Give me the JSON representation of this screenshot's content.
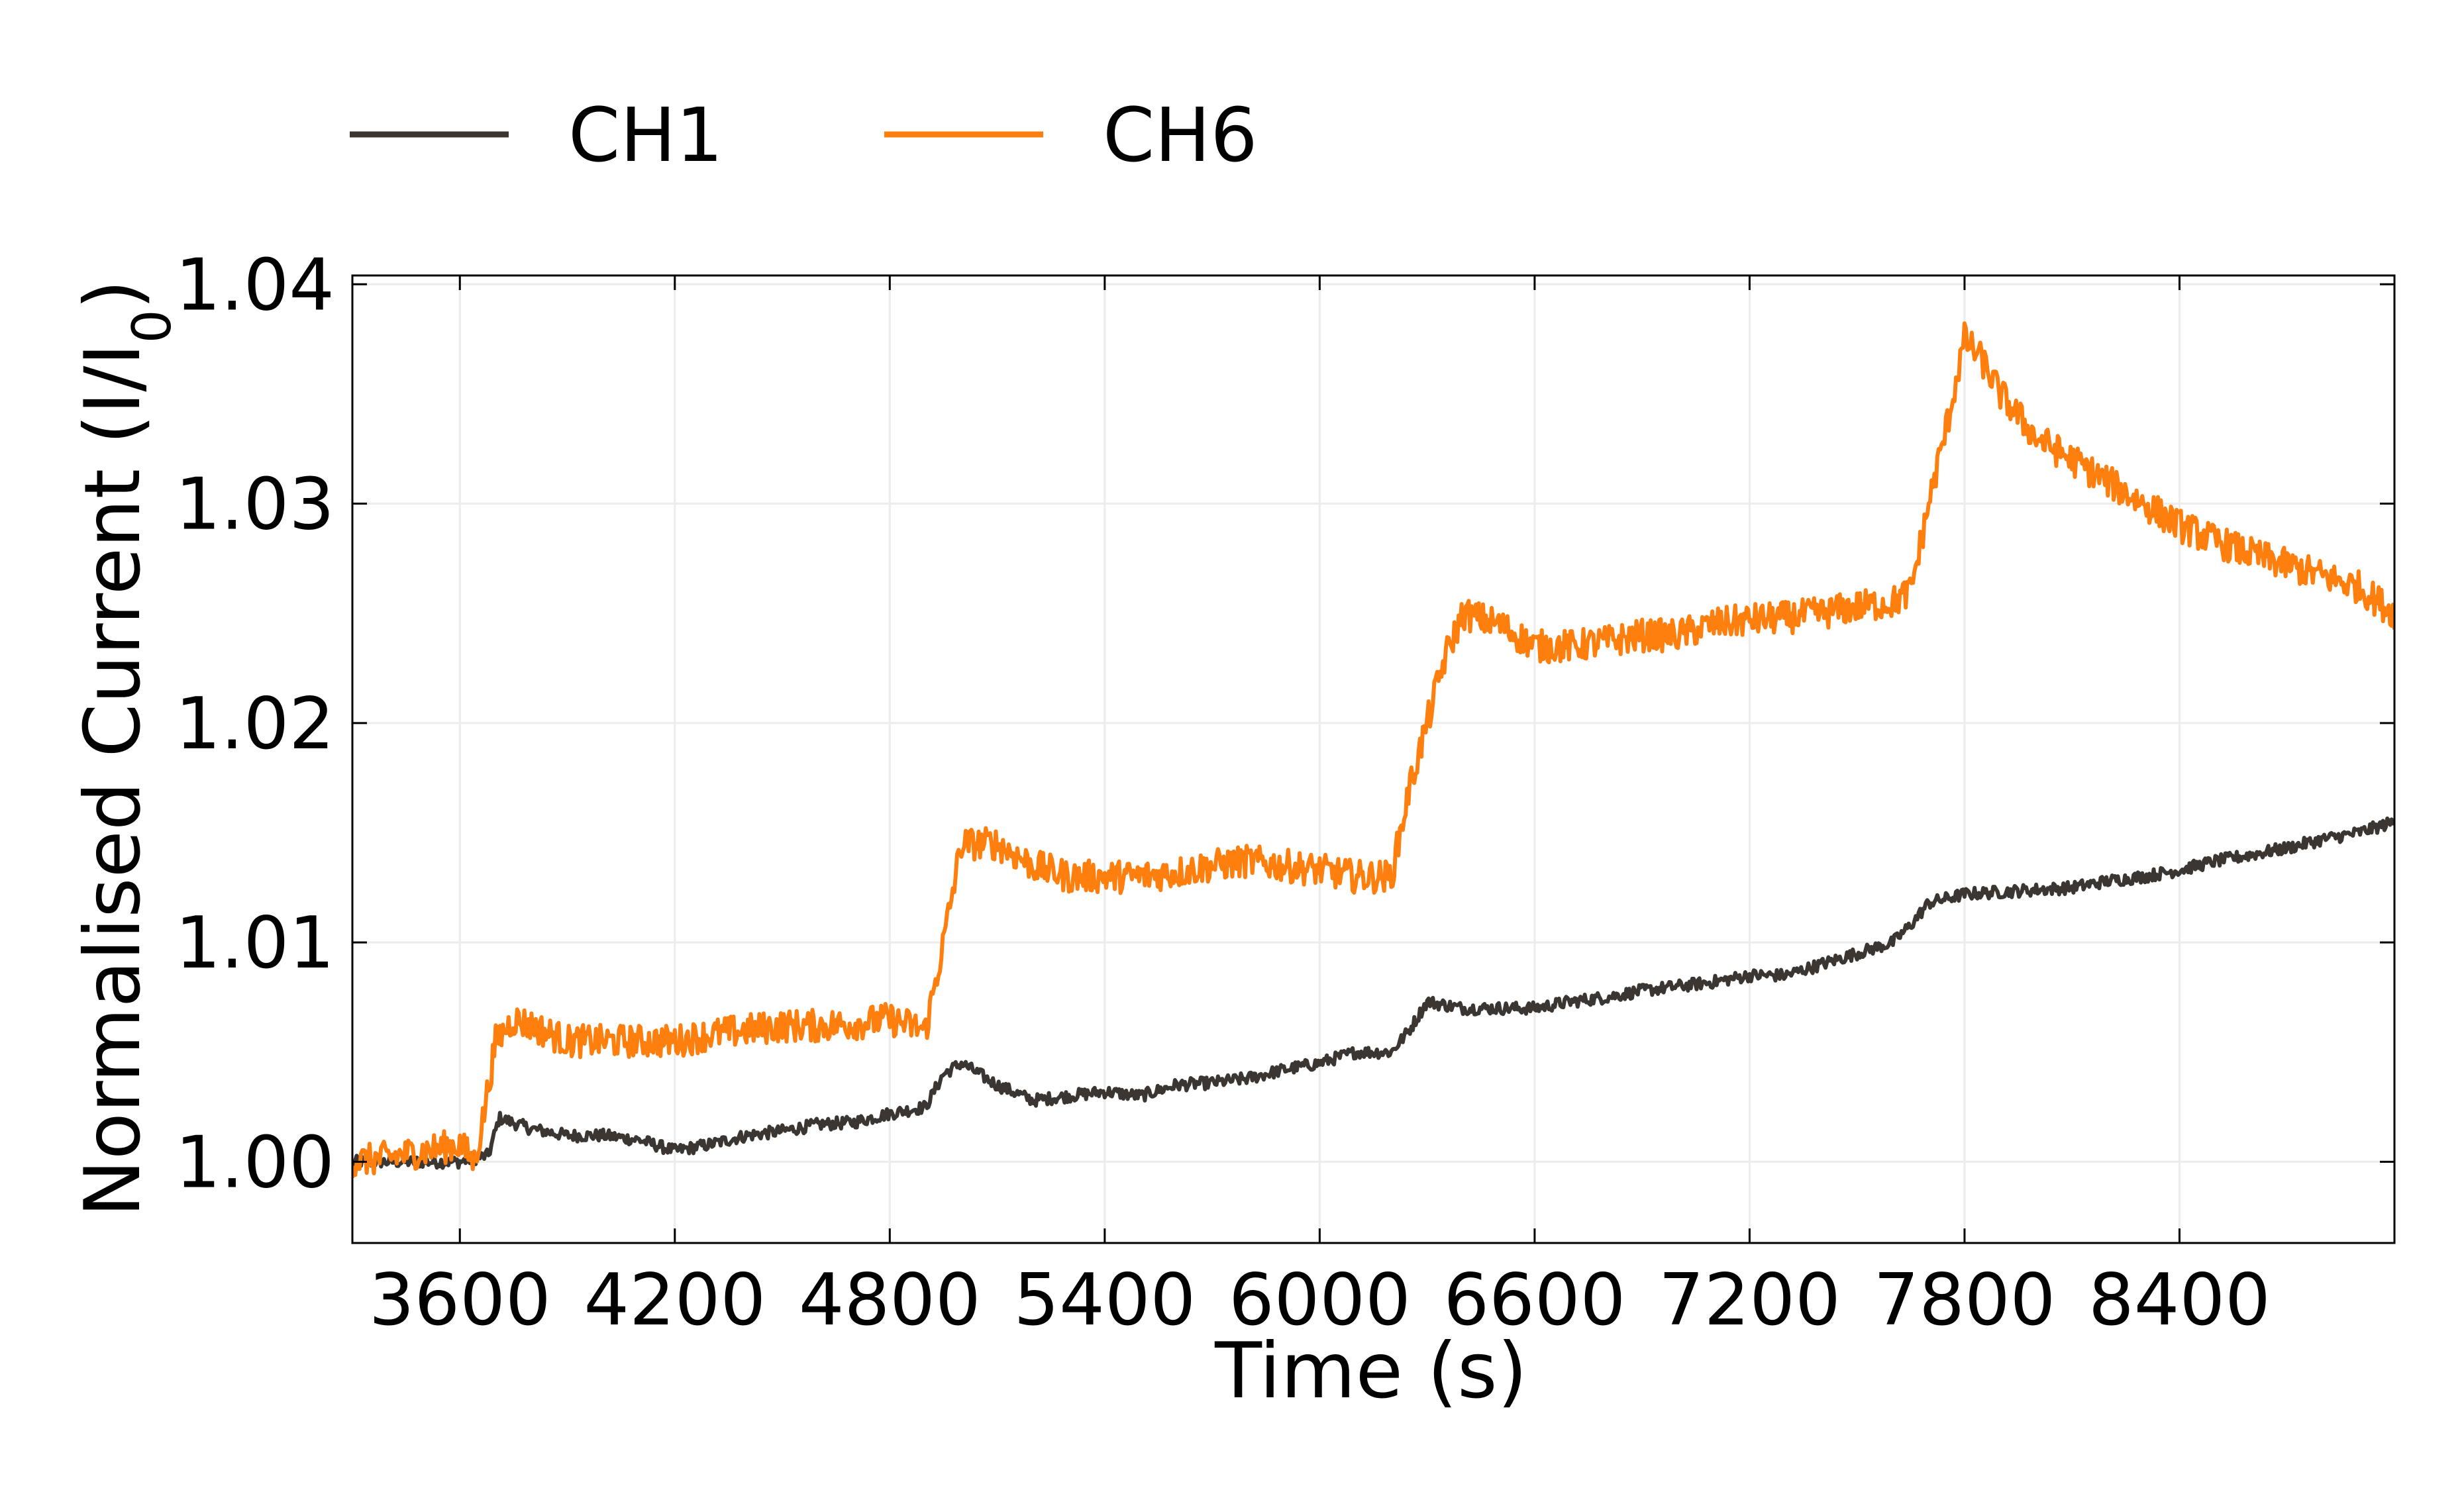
{
  "chart_data": {
    "type": "line",
    "title": "",
    "xlabel": "Time (s)",
    "ylabel_main": "Normalised Current (I/I",
    "ylabel_sub": "0",
    "ylabel_close": ")",
    "xlim": [
      3300,
      9000
    ],
    "ylim": [
      0.9963,
      1.0404
    ],
    "xticks": [
      3600,
      4200,
      4800,
      5400,
      6000,
      6600,
      7200,
      7800,
      8400
    ],
    "xtick_labels": [
      "3600",
      "4200",
      "4800",
      "5400",
      "6000",
      "6600",
      "7200",
      "7800",
      "8400"
    ],
    "yticks": [
      1.0,
      1.01,
      1.02,
      1.03,
      1.04
    ],
    "ytick_labels": [
      "1.00",
      "1.01",
      "1.02",
      "1.03",
      "1.04"
    ],
    "grid": true,
    "legend_position": "top",
    "series": [
      {
        "name": "CH1",
        "color": "#3b3632",
        "points": [
          [
            3300,
            1.0
          ],
          [
            3400,
            1.0
          ],
          [
            3500,
            1.0
          ],
          [
            3600,
            1.0
          ],
          [
            3680,
            1.0003
          ],
          [
            3710,
            1.002
          ],
          [
            3800,
            1.0015
          ],
          [
            3900,
            1.0012
          ],
          [
            4000,
            1.0012
          ],
          [
            4100,
            1.001
          ],
          [
            4200,
            1.0005
          ],
          [
            4300,
            1.0008
          ],
          [
            4400,
            1.0012
          ],
          [
            4500,
            1.0014
          ],
          [
            4600,
            1.0017
          ],
          [
            4700,
            1.0018
          ],
          [
            4800,
            1.0022
          ],
          [
            4900,
            1.0025
          ],
          [
            4950,
            1.004
          ],
          [
            5000,
            1.0045
          ],
          [
            5100,
            1.0035
          ],
          [
            5200,
            1.0028
          ],
          [
            5300,
            1.003
          ],
          [
            5400,
            1.0032
          ],
          [
            5500,
            1.003
          ],
          [
            5600,
            1.0035
          ],
          [
            5700,
            1.0036
          ],
          [
            5800,
            1.0038
          ],
          [
            5900,
            1.0042
          ],
          [
            6000,
            1.0045
          ],
          [
            6100,
            1.005
          ],
          [
            6200,
            1.005
          ],
          [
            6250,
            1.006
          ],
          [
            6300,
            1.0073
          ],
          [
            6400,
            1.007
          ],
          [
            6500,
            1.007
          ],
          [
            6600,
            1.007
          ],
          [
            6700,
            1.0073
          ],
          [
            6800,
            1.0075
          ],
          [
            6900,
            1.0078
          ],
          [
            7000,
            1.008
          ],
          [
            7100,
            1.0082
          ],
          [
            7200,
            1.0085
          ],
          [
            7300,
            1.0085
          ],
          [
            7400,
            1.009
          ],
          [
            7500,
            1.0095
          ],
          [
            7600,
            1.01
          ],
          [
            7650,
            1.0108
          ],
          [
            7700,
            1.0118
          ],
          [
            7800,
            1.0122
          ],
          [
            7900,
            1.0123
          ],
          [
            8000,
            1.0124
          ],
          [
            8100,
            1.0125
          ],
          [
            8200,
            1.0128
          ],
          [
            8300,
            1.013
          ],
          [
            8400,
            1.0133
          ],
          [
            8500,
            1.0137
          ],
          [
            8600,
            1.014
          ],
          [
            8700,
            1.0143
          ],
          [
            8800,
            1.0147
          ],
          [
            8900,
            1.015
          ],
          [
            9000,
            1.0155
          ]
        ]
      },
      {
        "name": "CH6",
        "color": "#ff7f0e",
        "points": [
          [
            3300,
            1.0
          ],
          [
            3400,
            1.0002
          ],
          [
            3500,
            1.0005
          ],
          [
            3600,
            1.0008
          ],
          [
            3640,
            1.0
          ],
          [
            3660,
            1.0015
          ],
          [
            3700,
            1.0055
          ],
          [
            3750,
            1.0065
          ],
          [
            3800,
            1.0062
          ],
          [
            3900,
            1.0055
          ],
          [
            4000,
            1.0055
          ],
          [
            4100,
            1.0055
          ],
          [
            4200,
            1.0055
          ],
          [
            4300,
            1.0058
          ],
          [
            4400,
            1.006
          ],
          [
            4500,
            1.0062
          ],
          [
            4600,
            1.0062
          ],
          [
            4700,
            1.0063
          ],
          [
            4800,
            1.0065
          ],
          [
            4900,
            1.006
          ],
          [
            4950,
            1.01
          ],
          [
            5000,
            1.0145
          ],
          [
            5100,
            1.0145
          ],
          [
            5200,
            1.0135
          ],
          [
            5300,
            1.013
          ],
          [
            5400,
            1.013
          ],
          [
            5500,
            1.013
          ],
          [
            5600,
            1.0132
          ],
          [
            5700,
            1.0135
          ],
          [
            5800,
            1.0137
          ],
          [
            5900,
            1.0135
          ],
          [
            6000,
            1.0133
          ],
          [
            6100,
            1.013
          ],
          [
            6200,
            1.013
          ],
          [
            6250,
            1.017
          ],
          [
            6300,
            1.02
          ],
          [
            6350,
            1.023
          ],
          [
            6400,
            1.025
          ],
          [
            6500,
            1.0245
          ],
          [
            6600,
            1.0235
          ],
          [
            6700,
            1.0235
          ],
          [
            6800,
            1.0237
          ],
          [
            6900,
            1.024
          ],
          [
            7000,
            1.024
          ],
          [
            7100,
            1.0245
          ],
          [
            7200,
            1.0247
          ],
          [
            7300,
            1.0248
          ],
          [
            7400,
            1.025
          ],
          [
            7500,
            1.0253
          ],
          [
            7600,
            1.0255
          ],
          [
            7650,
            1.026
          ],
          [
            7700,
            1.03
          ],
          [
            7750,
            1.0335
          ],
          [
            7800,
            1.0375
          ],
          [
            7850,
            1.0365
          ],
          [
            7900,
            1.035
          ],
          [
            8000,
            1.033
          ],
          [
            8100,
            1.032
          ],
          [
            8200,
            1.031
          ],
          [
            8300,
            1.03
          ],
          [
            8400,
            1.029
          ],
          [
            8500,
            1.0283
          ],
          [
            8600,
            1.0277
          ],
          [
            8700,
            1.0272
          ],
          [
            8800,
            1.0267
          ],
          [
            8900,
            1.0262
          ],
          [
            9000,
            1.025
          ]
        ]
      }
    ]
  }
}
